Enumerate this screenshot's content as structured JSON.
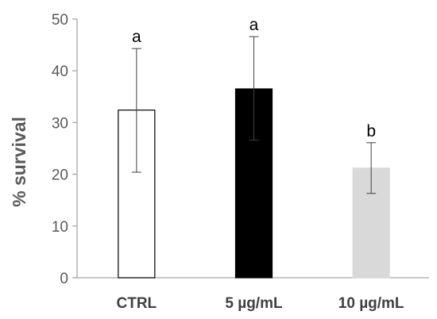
{
  "chart_data": {
    "type": "bar",
    "title": "",
    "xlabel": "",
    "ylabel": "% survival",
    "ylim": [
      0,
      50
    ],
    "yticks": [
      0,
      10,
      20,
      30,
      40,
      50
    ],
    "grid": false,
    "categories": [
      "CTRL",
      "5 µg/mL",
      "10 µg/mL"
    ],
    "values": [
      32.4,
      36.5,
      21.2
    ],
    "error_upper": [
      44.3,
      46.6,
      26.1
    ],
    "error_lower": [
      20.4,
      26.6,
      16.3
    ],
    "significance_labels": [
      "a",
      "a",
      "b"
    ],
    "bar_fill_colors": [
      "#ffffff",
      "#000000",
      "#d9d9d9"
    ],
    "bar_stroke_colors": [
      "#000000",
      "#000000",
      "#d9d9d9"
    ]
  }
}
